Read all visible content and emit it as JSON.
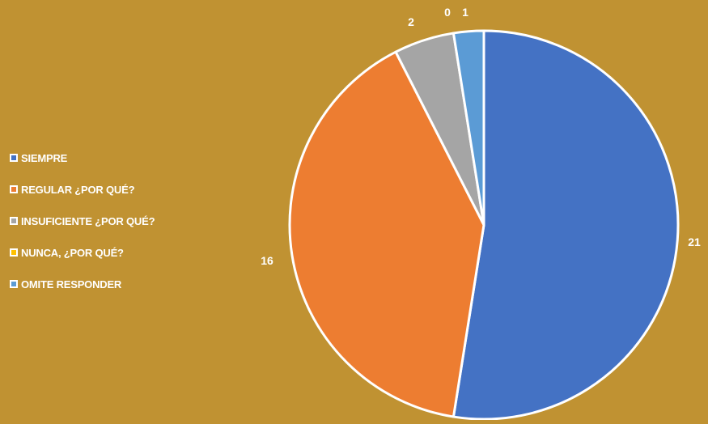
{
  "chart_data": {
    "type": "pie",
    "categories": [
      "SIEMPRE",
      "REGULAR ¿POR QUÉ?",
      "INSUFICIENTE ¿POR QUÉ?",
      "NUNCA, ¿POR QUÉ?",
      "OMITE RESPONDER"
    ],
    "values": [
      21,
      16,
      2,
      0,
      1
    ],
    "colors": [
      "#4472C4",
      "#ED7D31",
      "#A5A5A5",
      "#FFC000",
      "#5B9BD5"
    ],
    "title": "",
    "legend_position": "left",
    "data_labels": [
      "21",
      "16",
      "2",
      "0",
      "1"
    ]
  }
}
